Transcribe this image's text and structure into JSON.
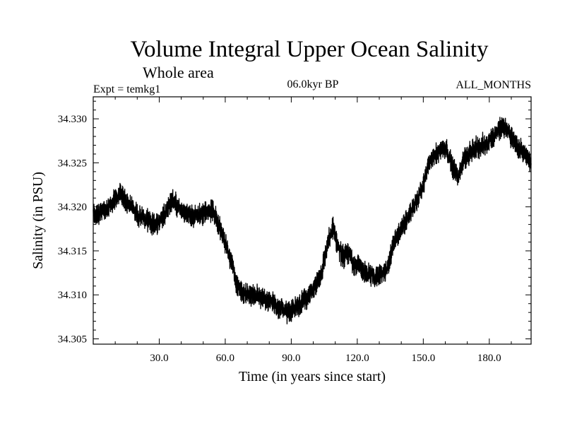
{
  "chart_data": {
    "type": "line",
    "title": "Volume Integral Upper Ocean Salinity",
    "subtitle": "Whole area",
    "experiment": "Expt = temkg1",
    "period": "06.0kyr BP",
    "months": "ALL_MONTHS",
    "xlabel": "Time (in years since start)",
    "ylabel": "Salinity (in PSU)",
    "xlim": [
      0,
      199
    ],
    "ylim": [
      34.3044,
      34.3325
    ],
    "x_ticks": [
      30,
      60,
      90,
      120,
      150,
      180
    ],
    "x_tick_labels": [
      "30.0",
      "60.0",
      "90.0",
      "120.0",
      "150.0",
      "180.0"
    ],
    "y_ticks": [
      34.305,
      34.31,
      34.315,
      34.32,
      34.325,
      34.33
    ],
    "y_tick_labels": [
      "34.305",
      "34.310",
      "34.315",
      "34.320",
      "34.325",
      "34.330"
    ],
    "series": [
      {
        "name": "Salinity",
        "noise_amplitude": 0.0018,
        "samples_per_year": 12,
        "trend_x": [
          0,
          5,
          9,
          12,
          15,
          20,
          24,
          28,
          30,
          33,
          36,
          40,
          45,
          50,
          54,
          56,
          60,
          63,
          65,
          67,
          70,
          75,
          80,
          85,
          88,
          92,
          96,
          100,
          104,
          107,
          109,
          111,
          113,
          116,
          118,
          122,
          126,
          131,
          134,
          136,
          140,
          145,
          150,
          153,
          157,
          160,
          163,
          166,
          168,
          172,
          176,
          180,
          183,
          186,
          189,
          192,
          195,
          198,
          199
        ],
        "trend_y": [
          34.3191,
          34.3195,
          34.3205,
          34.3215,
          34.3207,
          34.3192,
          34.3185,
          34.318,
          34.3183,
          34.3195,
          34.3208,
          34.3195,
          34.3189,
          34.3193,
          34.3196,
          34.3188,
          34.3158,
          34.3138,
          34.3115,
          34.3103,
          34.3101,
          34.3098,
          34.3092,
          34.3085,
          34.3079,
          34.3085,
          34.3095,
          34.3105,
          34.3128,
          34.3162,
          34.3176,
          34.3158,
          34.3143,
          34.3148,
          34.3137,
          34.313,
          34.3121,
          34.3123,
          34.313,
          34.3155,
          34.3175,
          34.3196,
          34.3225,
          34.3252,
          34.3263,
          34.3268,
          34.3248,
          34.3232,
          34.3252,
          34.3265,
          34.3268,
          34.3275,
          34.3283,
          34.3292,
          34.3284,
          34.3273,
          34.3262,
          34.3252,
          34.3248
        ]
      }
    ]
  }
}
